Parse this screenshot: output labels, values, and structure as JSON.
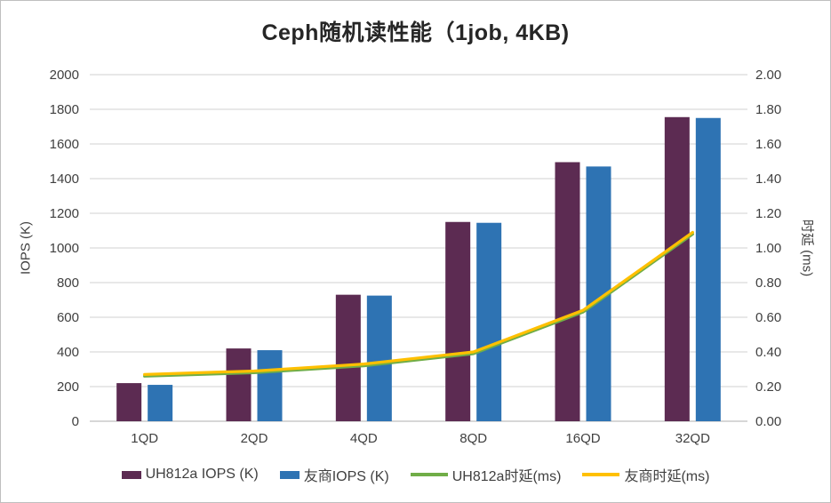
{
  "chart_data": {
    "type": "combo",
    "title": "Ceph随机读性能（1job, 4KB)",
    "categories": [
      "1QD",
      "2QD",
      "4QD",
      "8QD",
      "16QD",
      "32QD"
    ],
    "series": [
      {
        "name": "UH812a IOPS (K)",
        "type": "bar",
        "axis": "left",
        "color": "#5C2B52",
        "values": [
          220,
          420,
          730,
          1150,
          1495,
          1755
        ]
      },
      {
        "name": "友商IOPS (K)",
        "type": "bar",
        "axis": "left",
        "color": "#2E73B3",
        "values": [
          210,
          410,
          725,
          1145,
          1470,
          1750
        ]
      },
      {
        "name": "UH812a时延(ms)",
        "type": "line",
        "axis": "right",
        "color": "#70AD47",
        "values": [
          0.26,
          0.28,
          0.32,
          0.39,
          0.63,
          1.08
        ]
      },
      {
        "name": "友商时延(ms)",
        "type": "line",
        "axis": "right",
        "color": "#FFC000",
        "values": [
          0.27,
          0.29,
          0.33,
          0.4,
          0.64,
          1.09
        ]
      }
    ],
    "left_axis": {
      "label": "IOPS (K)",
      "min": 0,
      "max": 2000,
      "step": 200,
      "decimals": 0
    },
    "right_axis": {
      "label": "时延 (ms)",
      "min": 0,
      "max": 2,
      "step": 0.2,
      "decimals": 2
    },
    "grid": true,
    "legend_position": "bottom",
    "colors": {
      "grid": "#D9D9D9",
      "axis_line": "#BFBFBF",
      "tick_text": "#404040",
      "title_text": "#262626",
      "background": "#FFFFFF",
      "border": "#BFBFBF"
    }
  }
}
